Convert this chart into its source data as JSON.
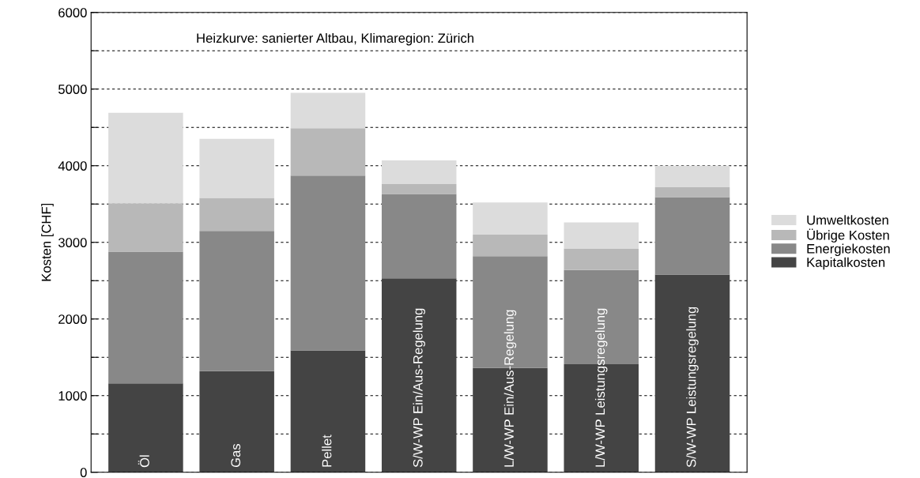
{
  "chart_data": {
    "type": "bar",
    "stacked": true,
    "ylabel": "Kosten [CHF]",
    "annotations": [
      "Heizkurve: sanierter Altbau, Klimaregion: Zürich"
    ],
    "categories": [
      "Öl",
      "Gas",
      "Pellet",
      "S/W-WP Ein/Aus-Regelung",
      "L/W-WP Ein/Aus-Regelung",
      "L/W-WP Leistungsregelung",
      "S/W-WP Leistungsregelung"
    ],
    "series": [
      {
        "name": "Kapitalkosten",
        "color": "#444444",
        "values": [
          1160,
          1320,
          1590,
          2530,
          1360,
          1410,
          2580
        ]
      },
      {
        "name": "Energiekosten",
        "color": "#888888",
        "values": [
          1720,
          1830,
          2280,
          1100,
          1460,
          1230,
          1010
        ]
      },
      {
        "name": "Übrige Kosten",
        "color": "#b8b8b8",
        "values": [
          630,
          430,
          620,
          130,
          280,
          280,
          130
        ]
      },
      {
        "name": "Umweltkosten",
        "color": "#dcdcdc",
        "values": [
          1180,
          770,
          460,
          310,
          420,
          340,
          280
        ]
      }
    ],
    "ylim": [
      0,
      6000
    ],
    "yticks": [
      0,
      {
        "value": 500,
        "label": null
      },
      1000,
      {
        "value": 1500,
        "label": null
      },
      2000,
      {
        "value": 2500,
        "label": null
      },
      3000,
      {
        "value": 3500,
        "label": null
      },
      4000,
      {
        "value": 4500,
        "label": null
      },
      5000,
      {
        "value": 5500,
        "label": null
      },
      6000
    ],
    "grid": "y",
    "legend": "right",
    "tick_labels": "y"
  }
}
